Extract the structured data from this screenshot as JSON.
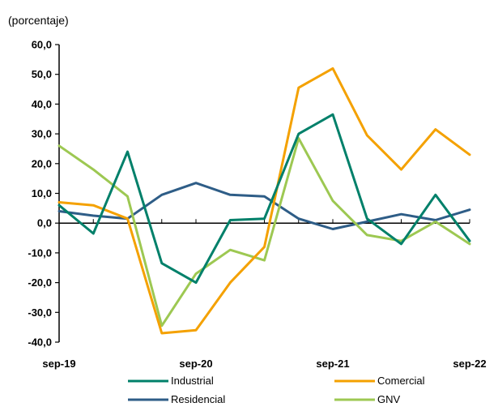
{
  "chart_data": {
    "type": "line",
    "unit_label": "(porcentaje)",
    "xlabel": "",
    "ylabel": "",
    "ylim": [
      -40,
      60
    ],
    "y_ticks": [
      "60,0",
      "50,0",
      "40,0",
      "30,0",
      "20,0",
      "10,0",
      "0,0",
      "-10,0",
      "-20,0",
      "-30,0",
      "-40,0"
    ],
    "x_tick_labels": [
      "sep-19",
      "sep-20",
      "sep-21",
      "sep-22"
    ],
    "x": [
      "sep-19",
      "dic-19",
      "mar-20",
      "jun-20",
      "sep-20",
      "dic-20",
      "mar-21",
      "jun-21",
      "sep-21",
      "dic-21",
      "mar-22",
      "jun-22",
      "sep-22"
    ],
    "grid": false,
    "legend_position": "bottom",
    "series": [
      {
        "name": "Industrial",
        "color": "#00806A",
        "values": [
          6.0,
          -3.5,
          24.0,
          -13.5,
          -20.0,
          1.0,
          1.5,
          30.0,
          36.5,
          1.5,
          -7.0,
          9.5,
          -6.0
        ]
      },
      {
        "name": "Comercial",
        "color": "#F4A100",
        "values": [
          7.0,
          6.0,
          1.5,
          -37.0,
          -36.0,
          -20.0,
          -8.0,
          45.5,
          52.0,
          29.5,
          18.0,
          31.5,
          23.0
        ]
      },
      {
        "name": "Residencial",
        "color": "#2E5D87",
        "values": [
          4.0,
          2.5,
          1.5,
          9.5,
          13.5,
          9.5,
          9.0,
          1.5,
          -2.0,
          0.5,
          3.0,
          1.0,
          4.5
        ]
      },
      {
        "name": "GNV",
        "color": "#9DC852",
        "values": [
          26.0,
          18.0,
          9.0,
          -34.5,
          -17.0,
          -9.0,
          -12.5,
          28.5,
          7.5,
          -4.0,
          -6.0,
          0.5,
          -7.0
        ]
      }
    ]
  }
}
